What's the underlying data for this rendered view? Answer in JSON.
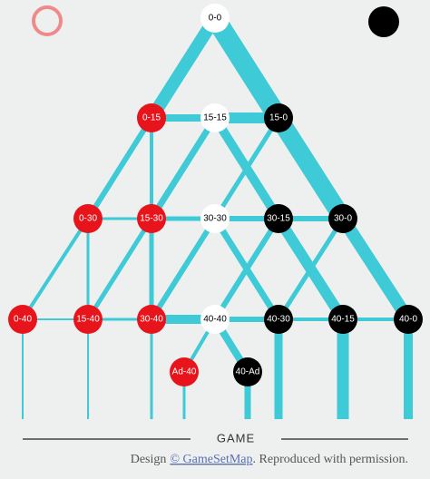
{
  "nodes": [
    {
      "label": "0-0"
    },
    {
      "label": "0-15"
    },
    {
      "label": "15-15"
    },
    {
      "label": "15-0"
    },
    {
      "label": "0-30"
    },
    {
      "label": "15-30"
    },
    {
      "label": "30-30"
    },
    {
      "label": "30-15"
    },
    {
      "label": "30-0"
    },
    {
      "label": "0-40"
    },
    {
      "label": "15-40"
    },
    {
      "label": "30-40"
    },
    {
      "label": "40-40"
    },
    {
      "label": "40-30"
    },
    {
      "label": "40-15"
    },
    {
      "label": "40-0"
    },
    {
      "label": "Ad-40"
    },
    {
      "label": "40-Ad"
    }
  ],
  "footer": {
    "heading": "GAME",
    "credit_prefix": "Design",
    "credit_link": "© GameSetMap",
    "credit_suffix": ". Reproduced with permission."
  }
}
